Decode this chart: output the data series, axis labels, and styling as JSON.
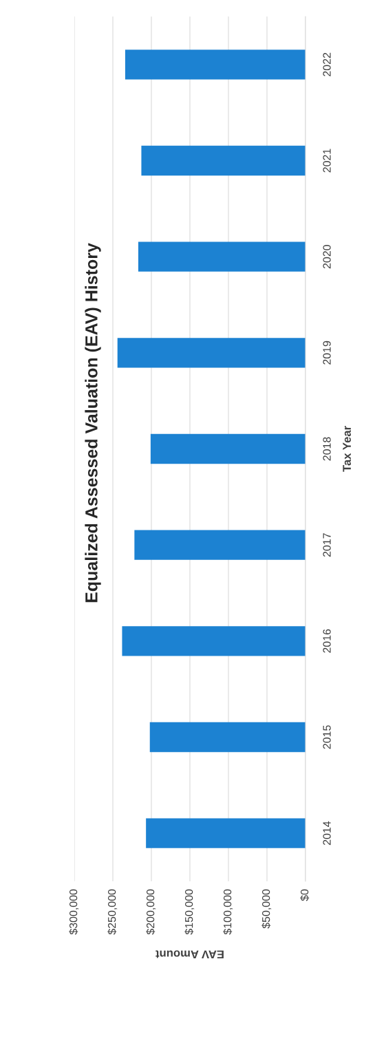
{
  "chart_data": {
    "type": "bar",
    "orientation": "horizontal",
    "title": "Equalized Assessed Valuation (EAV) History",
    "xlabel": "EAV Amount",
    "ylabel": "Tax Year",
    "categories": [
      "2022",
      "2021",
      "2020",
      "2019",
      "2018",
      "2017",
      "2016",
      "2015",
      "2014"
    ],
    "values": [
      234000,
      213000,
      217000,
      244000,
      201000,
      222000,
      238000,
      202000,
      207000
    ],
    "color": "#1c82d2",
    "xlim": [
      300000,
      0
    ],
    "xticks": [
      {
        "value": 300000,
        "label": "$300,000"
      },
      {
        "value": 250000,
        "label": "$250,000"
      },
      {
        "value": 200000,
        "label": "$200,000"
      },
      {
        "value": 150000,
        "label": "$150,000"
      },
      {
        "value": 100000,
        "label": "$100,000"
      },
      {
        "value": 50000,
        "label": "$50,000"
      },
      {
        "value": 0,
        "label": "$0"
      }
    ],
    "grid": "x"
  }
}
